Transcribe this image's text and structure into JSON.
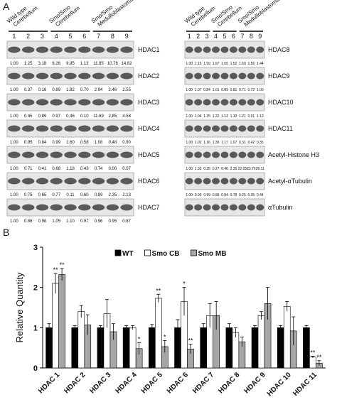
{
  "panel_a": {
    "label": "A",
    "groups": [
      [
        "Wild type",
        "Cerebellum"
      ],
      [
        "Smo/Smo",
        "Cerebellum"
      ],
      [
        "Smo/Smo",
        "Medulloblastoma"
      ]
    ],
    "lanes": [
      1,
      2,
      3,
      4,
      5,
      6,
      7,
      8,
      9
    ],
    "left_blots": [
      {
        "name": "HDAC1",
        "values": [
          "1.00",
          "1.25",
          "3.18",
          "6.26",
          "9.95",
          "1.13",
          "11.85",
          "10.76",
          "14.62"
        ]
      },
      {
        "name": "HDAC2",
        "values": [
          "1.00",
          "0.37",
          "0.16",
          "0.89",
          "1.82",
          "0.70",
          "2.94",
          "2.46",
          "2.55"
        ]
      },
      {
        "name": "HDAC3",
        "values": [
          "1.00",
          "0.45",
          "0.89",
          "0.97",
          "0.46",
          "0.10",
          "11.69",
          "2.85",
          "4.58"
        ]
      },
      {
        "name": "HDAC4",
        "values": [
          "1.00",
          "0.95",
          "0.84",
          "0.99",
          "1.60",
          "0.58",
          "1.08",
          "0.48",
          "0.90"
        ]
      },
      {
        "name": "HDAC5",
        "values": [
          "1.00",
          "0.71",
          "0.41",
          "0.68",
          "1.18",
          "0.43",
          "0.74",
          "0.00",
          "0.07"
        ]
      },
      {
        "name": "HDAC6",
        "values": [
          "1.00",
          "0.75",
          "0.65",
          "0.77",
          "0.11",
          "0.60",
          "0.89",
          "2.35",
          "2.13"
        ]
      },
      {
        "name": "HDAC7",
        "values": [
          "1.00",
          "0.86",
          "0.96",
          "1.05",
          "1.10",
          "0.97",
          "0.96",
          "0.95",
          "0.87"
        ]
      }
    ],
    "right_blots": [
      {
        "name": "HDAC8",
        "values": [
          "1.00",
          "1.15",
          "1.50",
          "1.67",
          "1.65",
          "1.52",
          "1.60",
          "1.56",
          "1.44"
        ]
      },
      {
        "name": "HDAC9",
        "values": [
          "1.00",
          "1.07",
          "0.84",
          "1.01",
          "0.89",
          "0.81",
          "0.71",
          "0.72",
          "1.00"
        ]
      },
      {
        "name": "HDAC10",
        "values": [
          "1.00",
          "1.04",
          "1.25",
          "1.22",
          "1.13",
          "1.12",
          "1.21",
          "0.91",
          "1.13"
        ]
      },
      {
        "name": "HDAC11",
        "values": [
          "1.00",
          "1.02",
          "1.16",
          "1.36",
          "1.17",
          "1.07",
          "0.31",
          "0.42",
          "0.35"
        ]
      },
      {
        "name": "Acetyl-Histone H3",
        "values": [
          "1.00",
          "1.33",
          "0.35",
          "0.27",
          "0.40",
          "2.35",
          "22.05",
          "23.73",
          "26.11"
        ]
      },
      {
        "name": "Acetyl-αTubulin",
        "values": [
          "1.00",
          "0.99",
          "0.99",
          "0.98",
          "0.84",
          "0.78",
          "0.25",
          "0.35",
          "0.44"
        ]
      },
      {
        "name": "αTubulin"
      }
    ]
  },
  "chart_data": {
    "type": "bar",
    "panel_label": "B",
    "ylabel": "Relative Quantity",
    "categories": [
      "HDAC 1",
      "HDAC 2",
      "HDAC 3",
      "HDAC 4",
      "HDAC 5",
      "HDAC 6",
      "HDAC 7",
      "HDAC 8",
      "HDAC 9",
      "HDAC 10",
      "HDAC 11"
    ],
    "ylim": [
      0,
      3
    ],
    "yticks": [
      0,
      1,
      2,
      3
    ],
    "legend": "top",
    "series": [
      {
        "name": "WT",
        "color": "#000000",
        "values": [
          1.0,
          1.0,
          1.0,
          1.0,
          1.0,
          1.0,
          1.0,
          1.0,
          1.0,
          1.0,
          1.0
        ],
        "errors": [
          0.1,
          0.05,
          0.05,
          0.05,
          0.08,
          0.2,
          0.1,
          0.1,
          0.05,
          0.05,
          0.05
        ],
        "annotations": [
          null,
          null,
          null,
          null,
          null,
          null,
          null,
          null,
          null,
          null,
          null
        ]
      },
      {
        "name": "Smo CB",
        "color": "#ffffff",
        "values": [
          2.1,
          1.4,
          1.35,
          1.0,
          1.73,
          1.65,
          1.3,
          0.88,
          1.3,
          1.53,
          0.27
        ],
        "errors": [
          0.25,
          0.15,
          0.35,
          0.05,
          0.1,
          0.35,
          0.3,
          0.12,
          0.1,
          0.12,
          0.02
        ],
        "annotations": [
          "**",
          null,
          null,
          null,
          "**",
          "*",
          null,
          null,
          null,
          null,
          "**"
        ]
      },
      {
        "name": "Smo MB",
        "color": "#a6a6a6",
        "values": [
          2.32,
          1.07,
          0.9,
          0.48,
          0.53,
          0.47,
          1.3,
          0.65,
          1.6,
          0.92,
          0.12
        ],
        "errors": [
          0.15,
          0.25,
          0.2,
          0.15,
          0.15,
          0.12,
          0.35,
          0.12,
          0.4,
          0.35,
          0.06
        ],
        "annotations": [
          "**",
          null,
          null,
          "*",
          "*",
          "**",
          null,
          null,
          null,
          null,
          "**"
        ]
      }
    ]
  }
}
